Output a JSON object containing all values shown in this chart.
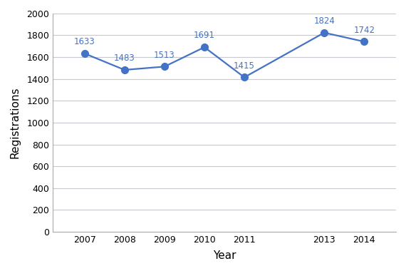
{
  "years": [
    2007,
    2008,
    2009,
    2010,
    2011,
    2013,
    2014
  ],
  "values": [
    1633,
    1483,
    1513,
    1691,
    1415,
    1824,
    1742
  ],
  "line_color": "#4472C4",
  "marker_color": "#4472C4",
  "xlabel": "Year",
  "ylabel": "Registrations",
  "ylim": [
    0,
    2000
  ],
  "ytick_step": 200,
  "background_color": "#FFFFFF",
  "plot_bg_color": "#FFFFFF",
  "grid_color": "#C8C8D0",
  "label_fontsize": 11,
  "annotation_fontsize": 8.5,
  "tick_fontsize": 9,
  "line_width": 1.6,
  "marker_size": 7,
  "xlim_left": 2006.2,
  "xlim_right": 2014.8
}
